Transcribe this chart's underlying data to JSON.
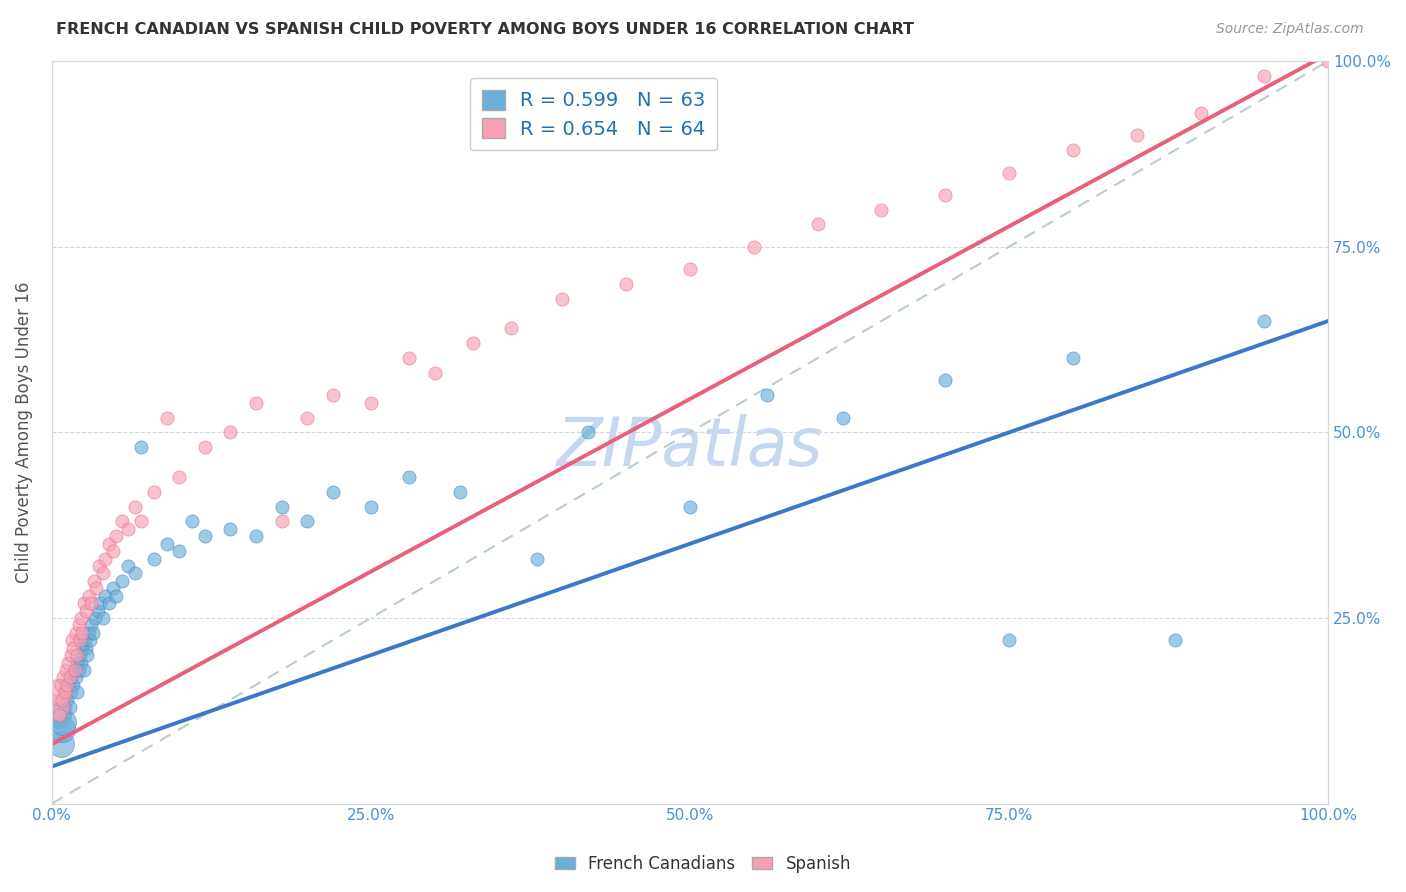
{
  "title": "FRENCH CANADIAN VS SPANISH CHILD POVERTY AMONG BOYS UNDER 16 CORRELATION CHART",
  "source": "Source: ZipAtlas.com",
  "ylabel": "Child Poverty Among Boys Under 16",
  "xlim": [
    0,
    1
  ],
  "ylim": [
    0,
    1
  ],
  "xtick_labels": [
    "0.0%",
    "25.0%",
    "50.0%",
    "75.0%",
    "100.0%"
  ],
  "xtick_positions": [
    0,
    0.25,
    0.5,
    0.75,
    1.0
  ],
  "right_ytick_labels": [
    "",
    "25.0%",
    "50.0%",
    "75.0%",
    "100.0%"
  ],
  "right_ytick_positions": [
    0,
    0.25,
    0.5,
    0.75,
    1.0
  ],
  "blue_color": "#6baed6",
  "pink_color": "#f4a0b5",
  "blue_line_color": "#3a78c9",
  "pink_line_color": "#e8607a",
  "diag_line_color": "#b8cece",
  "watermark_color": "#c5d8ef",
  "legend_blue_label": "R = 0.599   N = 63",
  "legend_pink_label": "R = 0.654   N = 64",
  "blue_slope": 0.6,
  "blue_intercept": 0.05,
  "pink_slope": 0.93,
  "pink_intercept": 0.08,
  "french_x": [
    0.005,
    0.007,
    0.008,
    0.009,
    0.01,
    0.01,
    0.012,
    0.013,
    0.014,
    0.015,
    0.015,
    0.017,
    0.018,
    0.019,
    0.02,
    0.02,
    0.021,
    0.022,
    0.023,
    0.024,
    0.025,
    0.026,
    0.027,
    0.028,
    0.029,
    0.03,
    0.031,
    0.032,
    0.034,
    0.036,
    0.038,
    0.04,
    0.042,
    0.045,
    0.048,
    0.05,
    0.055,
    0.06,
    0.065,
    0.07,
    0.08,
    0.09,
    0.1,
    0.11,
    0.12,
    0.14,
    0.16,
    0.18,
    0.2,
    0.22,
    0.25,
    0.28,
    0.32,
    0.38,
    0.42,
    0.5,
    0.56,
    0.62,
    0.7,
    0.75,
    0.8,
    0.88,
    0.95
  ],
  "french_y": [
    0.12,
    0.08,
    0.1,
    0.11,
    0.13,
    0.15,
    0.14,
    0.16,
    0.13,
    0.15,
    0.17,
    0.16,
    0.18,
    0.17,
    0.15,
    0.19,
    0.18,
    0.2,
    0.19,
    0.21,
    0.18,
    0.22,
    0.21,
    0.2,
    0.23,
    0.22,
    0.24,
    0.23,
    0.25,
    0.26,
    0.27,
    0.25,
    0.28,
    0.27,
    0.29,
    0.28,
    0.3,
    0.32,
    0.31,
    0.48,
    0.33,
    0.35,
    0.34,
    0.38,
    0.36,
    0.37,
    0.36,
    0.4,
    0.38,
    0.42,
    0.4,
    0.44,
    0.42,
    0.33,
    0.5,
    0.4,
    0.55,
    0.52,
    0.57,
    0.22,
    0.6,
    0.22,
    0.65
  ],
  "spanish_x": [
    0.003,
    0.005,
    0.006,
    0.007,
    0.008,
    0.009,
    0.01,
    0.011,
    0.012,
    0.013,
    0.014,
    0.015,
    0.016,
    0.017,
    0.018,
    0.019,
    0.02,
    0.021,
    0.022,
    0.023,
    0.024,
    0.025,
    0.027,
    0.029,
    0.031,
    0.033,
    0.035,
    0.037,
    0.04,
    0.042,
    0.045,
    0.048,
    0.05,
    0.055,
    0.06,
    0.065,
    0.07,
    0.08,
    0.09,
    0.1,
    0.12,
    0.14,
    0.16,
    0.18,
    0.2,
    0.22,
    0.25,
    0.28,
    0.3,
    0.33,
    0.36,
    0.4,
    0.45,
    0.5,
    0.55,
    0.6,
    0.65,
    0.7,
    0.75,
    0.8,
    0.85,
    0.9,
    0.95,
    1.0
  ],
  "spanish_y": [
    0.13,
    0.15,
    0.12,
    0.16,
    0.14,
    0.17,
    0.15,
    0.18,
    0.16,
    0.19,
    0.17,
    0.2,
    0.22,
    0.21,
    0.18,
    0.23,
    0.2,
    0.24,
    0.22,
    0.25,
    0.23,
    0.27,
    0.26,
    0.28,
    0.27,
    0.3,
    0.29,
    0.32,
    0.31,
    0.33,
    0.35,
    0.34,
    0.36,
    0.38,
    0.37,
    0.4,
    0.38,
    0.42,
    0.52,
    0.44,
    0.48,
    0.5,
    0.54,
    0.38,
    0.52,
    0.55,
    0.54,
    0.6,
    0.58,
    0.62,
    0.64,
    0.68,
    0.7,
    0.72,
    0.75,
    0.78,
    0.8,
    0.82,
    0.85,
    0.88,
    0.9,
    0.93,
    0.98,
    1.0
  ]
}
